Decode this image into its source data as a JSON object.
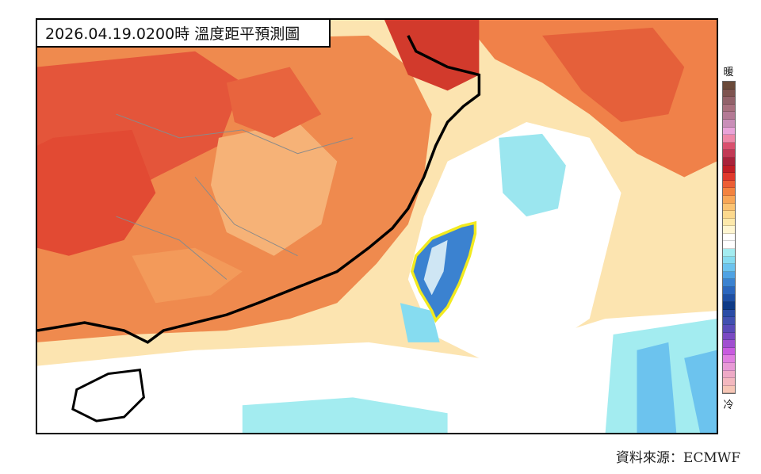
{
  "title": "2026.04.19.0200時 溫度距平預測圖",
  "legend": {
    "top_label": "暖",
    "bottom_label": "冷",
    "colors": [
      "#6b4a3a",
      "#7e5450",
      "#92626a",
      "#a8707e",
      "#b47a95",
      "#c98eb8",
      "#e9a3d8",
      "#ee88a8",
      "#d9506e",
      "#c23a55",
      "#a9233b",
      "#c11e26",
      "#e0392c",
      "#ec5e35",
      "#f3823f",
      "#f8a656",
      "#fbc372",
      "#fcd98e",
      "#fde9ab",
      "#fff6d2",
      "#ffffff",
      "#ffffff",
      "#a3ecf0",
      "#86dcf0",
      "#6cc3ee",
      "#4fa2e3",
      "#3b82d0",
      "#2b66bd",
      "#1e4fa4",
      "#0e3a87",
      "#2a4ca6",
      "#4150b0",
      "#5a4bb8",
      "#7a4ac2",
      "#a04fd0",
      "#c85bdf",
      "#e07fe0",
      "#e89ad6",
      "#eeaac6",
      "#f3b8bf",
      "#f6c6b6"
    ]
  },
  "source_label": "資料來源：ECMWF",
  "map": {
    "highlight_region": "Taiwan",
    "highlight_color": "#f2ea1f",
    "coast_color": "#000000",
    "border_color": "#8a8a8a"
  }
}
